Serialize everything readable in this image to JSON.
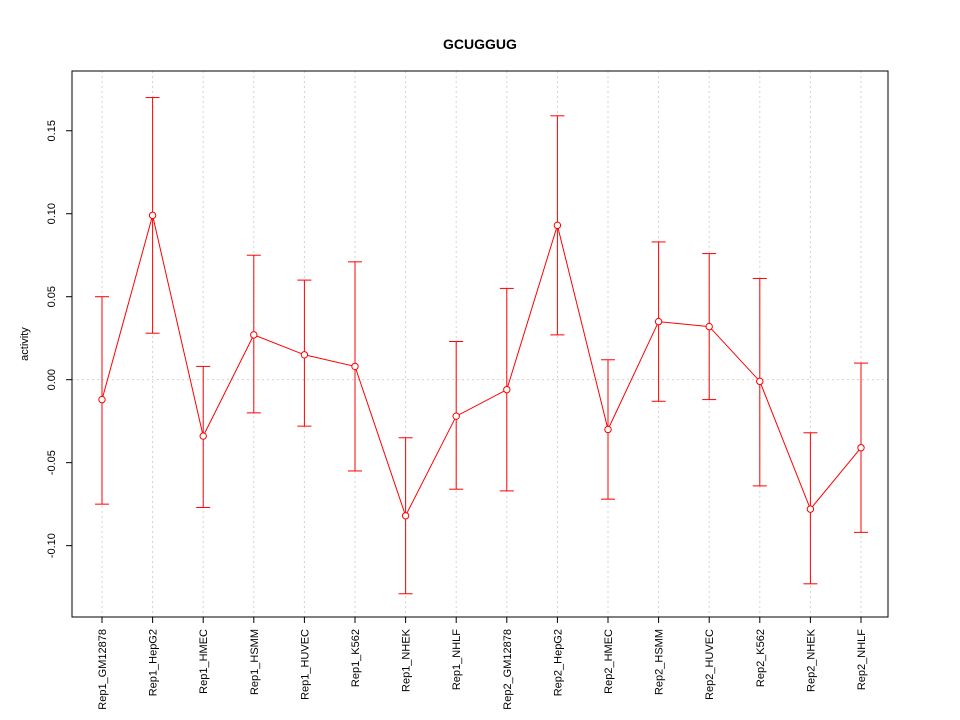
{
  "chart_data": {
    "type": "line",
    "title": "GCUGGUG",
    "xlabel": "",
    "ylabel": "activity",
    "ylim": [
      -0.143,
      0.186
    ],
    "yticks": [
      -0.1,
      -0.05,
      0.0,
      0.05,
      0.1,
      0.15
    ],
    "ytick_labels": [
      "-0.10",
      "-0.05",
      "0.00",
      "0.05",
      "0.10",
      "0.15"
    ],
    "grid": true,
    "color": "#ff0000",
    "categories": [
      "Rep1_GM12878",
      "Rep1_HepG2",
      "Rep1_HMEC",
      "Rep1_HSMM",
      "Rep1_HUVEC",
      "Rep1_K562",
      "Rep1_NHEK",
      "Rep1_NHLF",
      "Rep2_GM12878",
      "Rep2_HepG2",
      "Rep2_HMEC",
      "Rep2_HSMM",
      "Rep2_HUVEC",
      "Rep2_K562",
      "Rep2_NHEK",
      "Rep2_NHLF"
    ],
    "values": [
      -0.012,
      0.099,
      -0.034,
      0.027,
      0.015,
      0.008,
      -0.082,
      -0.022,
      -0.006,
      0.093,
      -0.03,
      0.035,
      0.032,
      -0.001,
      -0.078,
      -0.041
    ],
    "upper": [
      0.05,
      0.17,
      0.008,
      0.075,
      0.06,
      0.071,
      -0.035,
      0.023,
      0.055,
      0.159,
      0.012,
      0.083,
      0.076,
      0.061,
      -0.032,
      0.01
    ],
    "lower": [
      -0.075,
      0.028,
      -0.077,
      -0.02,
      -0.028,
      -0.055,
      -0.129,
      -0.066,
      -0.067,
      0.027,
      -0.072,
      -0.013,
      -0.012,
      -0.064,
      -0.123,
      -0.092
    ]
  }
}
